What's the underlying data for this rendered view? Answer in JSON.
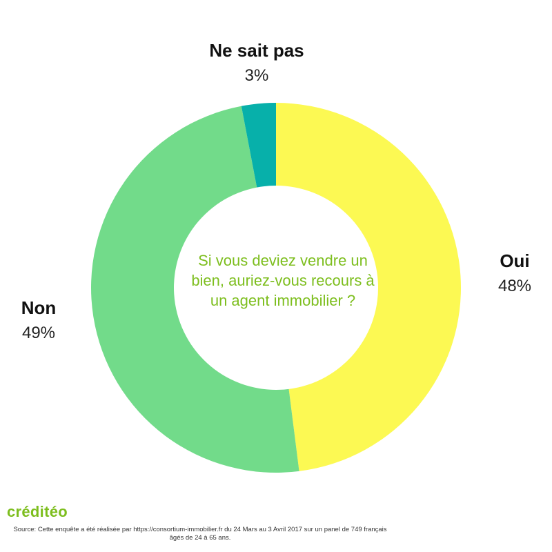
{
  "chart_data": {
    "type": "pie",
    "donut": true,
    "categories": [
      "Oui",
      "Non",
      "Ne sait pas"
    ],
    "values": [
      48,
      49,
      3
    ],
    "value_labels": [
      "48%",
      "49%",
      "3%"
    ],
    "colors": [
      "#fcf953",
      "#72db8a",
      "#07b0aa"
    ],
    "center_text": [
      "Si vous deviez vendre un",
      "bien, auriez-vous recours à",
      "un agent immobilier ?"
    ],
    "center_text_color": "#7dbe1e",
    "title": "",
    "legend": "none"
  },
  "brand": {
    "name": "créditéo",
    "color": "#7dbe1e"
  },
  "source": {
    "text": "Source: Cette enquête a été réalisée par https://consortium-immobilier.fr du 24 Mars au 3 Avril 2017 sur un panel de 749 français âgés de 24 à 65 ans."
  }
}
